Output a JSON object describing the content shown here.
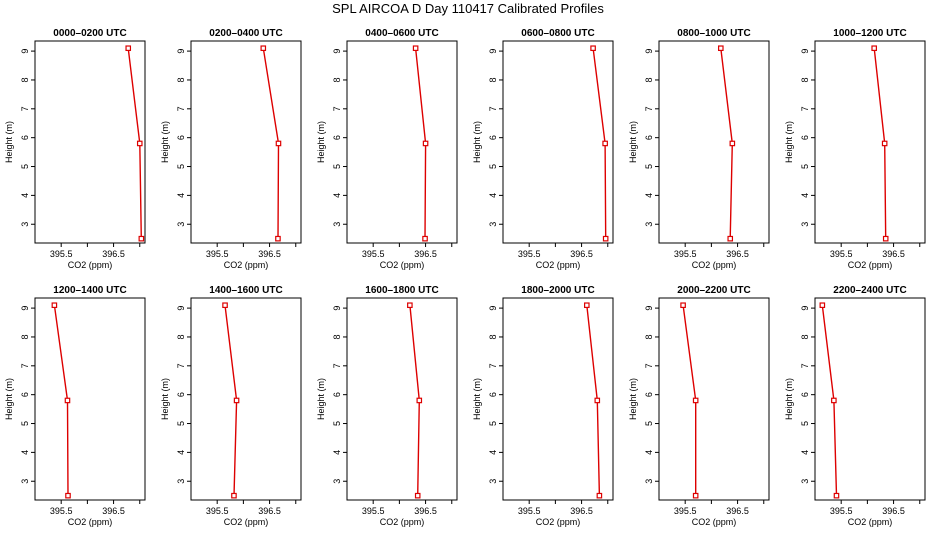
{
  "title": "SPL AIRCOA D  Day 110417  Calibrated Profiles",
  "colors": {
    "line": "#dd0000",
    "marker": "#dd0000",
    "axis": "#000000"
  },
  "chart_data": {
    "type": "line",
    "shared": {
      "xlabel": "CO2 (ppm)",
      "ylabel": "Height (m)",
      "xlim": [
        395.0,
        397.1
      ],
      "ylim": [
        2.35,
        9.35
      ],
      "xticks": [
        395.5,
        396.0,
        396.5,
        397.0
      ],
      "xticklabels": [
        "395.5",
        "",
        "396.5",
        ""
      ],
      "yticks": [
        3,
        4,
        5,
        6,
        7,
        8,
        9
      ],
      "heights": [
        9.1,
        5.8,
        2.5
      ],
      "grid": false,
      "legend": "none"
    },
    "panels": [
      {
        "title": "0000–0200 UTC",
        "co2": [
          396.78,
          397.0,
          397.03
        ]
      },
      {
        "title": "0200–0400 UTC",
        "co2": [
          396.38,
          396.67,
          396.66
        ]
      },
      {
        "title": "0400–0600 UTC",
        "co2": [
          396.31,
          396.5,
          396.49
        ]
      },
      {
        "title": "0600–0800 UTC",
        "co2": [
          396.72,
          396.95,
          396.96
        ]
      },
      {
        "title": "0800–1000 UTC",
        "co2": [
          396.18,
          396.4,
          396.36
        ]
      },
      {
        "title": "1000–1200 UTC",
        "co2": [
          396.13,
          396.33,
          396.35
        ]
      },
      {
        "title": "1200–1400 UTC",
        "co2": [
          395.37,
          395.62,
          395.63
        ]
      },
      {
        "title": "1400–1600 UTC",
        "co2": [
          395.65,
          395.87,
          395.82
        ]
      },
      {
        "title": "1600–1800 UTC",
        "co2": [
          396.2,
          396.38,
          396.35
        ]
      },
      {
        "title": "1800–2000 UTC",
        "co2": [
          396.6,
          396.8,
          396.84
        ]
      },
      {
        "title": "2000–2200 UTC",
        "co2": [
          395.46,
          395.7,
          395.7
        ]
      },
      {
        "title": "2200–2400 UTC",
        "co2": [
          395.14,
          395.36,
          395.41
        ]
      }
    ]
  }
}
